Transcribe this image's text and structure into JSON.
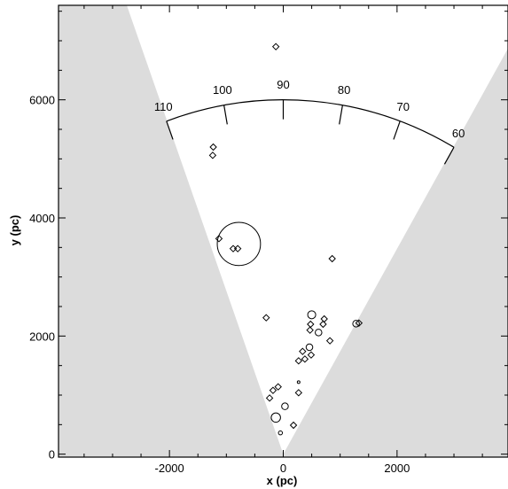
{
  "chart_data": {
    "type": "scatter",
    "title": "",
    "xlabel": "x (pc)",
    "ylabel": "y (pc)",
    "xlim": [
      -3950,
      3950
    ],
    "ylim": [
      -50,
      7600
    ],
    "x_ticks": [
      -2000,
      0,
      2000
    ],
    "y_ticks": [
      0,
      2000,
      4000,
      6000
    ],
    "x_tick_labels": [
      "-2000",
      "0",
      "2000"
    ],
    "y_tick_labels": [
      "0",
      "2000",
      "4000",
      "6000"
    ],
    "shaded_wedge": {
      "apex": [
        0,
        0
      ],
      "left_edge_top": [
        -2750,
        7600
      ],
      "right_edge_top": [
        3950,
        6870
      ],
      "fill": "#dcdcdc"
    },
    "longitude_arc": {
      "radius": 6000,
      "angle_range": [
        60,
        110
      ],
      "ticks": [
        110,
        100,
        90,
        80,
        70,
        60
      ],
      "tick_labels": [
        "110",
        "100",
        "90",
        "80",
        "70",
        "60"
      ]
    },
    "series": [
      {
        "marker": "diamond",
        "points": [
          [
            -130,
            6900
          ],
          [
            -1230,
            5200
          ],
          [
            -1240,
            5060
          ],
          [
            -1130,
            3650
          ],
          [
            -880,
            3480
          ],
          [
            -800,
            3480
          ],
          [
            860,
            3310
          ],
          [
            -300,
            2310
          ],
          [
            720,
            2290
          ],
          [
            700,
            2200
          ],
          [
            480,
            2200
          ],
          [
            470,
            2100
          ],
          [
            1330,
            2220
          ],
          [
            820,
            1920
          ],
          [
            340,
            1740
          ],
          [
            490,
            1680
          ],
          [
            380,
            1610
          ],
          [
            270,
            1580
          ],
          [
            -90,
            1140
          ],
          [
            -180,
            1080
          ],
          [
            270,
            1040
          ],
          [
            -240,
            950
          ],
          [
            180,
            490
          ]
        ]
      },
      {
        "marker": "circle",
        "points": [
          [
            500,
            2360
          ],
          [
            1280,
            2210
          ],
          [
            620,
            2060
          ],
          [
            460,
            1810
          ],
          [
            270,
            1220
          ],
          [
            30,
            810
          ],
          [
            -130,
            620
          ],
          [
            -50,
            360
          ]
        ],
        "sizes": [
          6,
          5,
          5,
          5,
          2,
          5,
          7,
          3
        ]
      }
    ],
    "highlight_circle": {
      "center": [
        -780,
        3560
      ],
      "radius": 380
    }
  }
}
